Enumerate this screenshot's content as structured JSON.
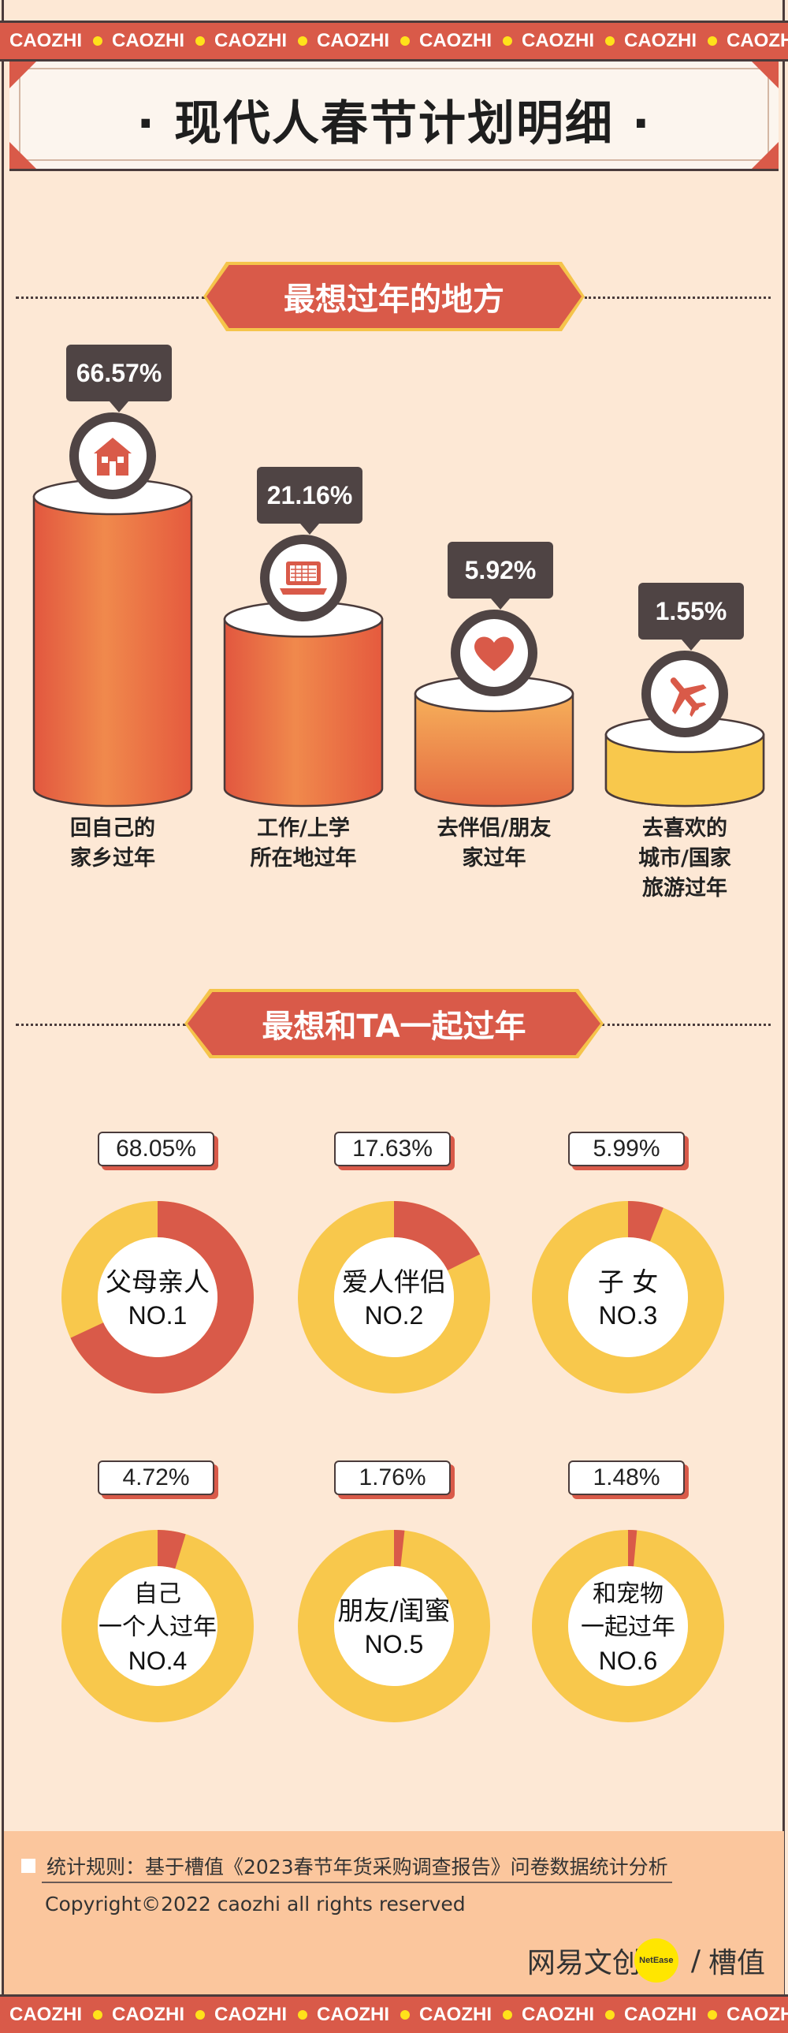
{
  "ticker": {
    "word": "CAOZHI",
    "repeat": 8
  },
  "title": "·  现代人春节计划明细  ·",
  "section1": {
    "title": "最想过年的地方",
    "items": [
      {
        "pct": "66.57%",
        "value": 66.57,
        "icon": "house-icon",
        "label_lines": [
          "回自己的",
          "家乡过年"
        ]
      },
      {
        "pct": "21.16%",
        "value": 21.16,
        "icon": "laptop-icon",
        "label_lines": [
          "工作/上学",
          "所在地过年"
        ]
      },
      {
        "pct": "5.92%",
        "value": 5.92,
        "icon": "heart-icon",
        "label_lines": [
          "去伴侣/朋友",
          "家过年"
        ]
      },
      {
        "pct": "1.55%",
        "value": 1.55,
        "icon": "airplane-icon",
        "label_lines": [
          "去喜欢的",
          "城市/国家",
          "旅游过年"
        ]
      }
    ]
  },
  "section2": {
    "title": "最想和TA一起过年",
    "items": [
      {
        "pct": "68.05%",
        "value": 68.05,
        "label_lines": [
          "父母亲人"
        ],
        "rank": "NO.1"
      },
      {
        "pct": "17.63%",
        "value": 17.63,
        "label_lines": [
          "爱人伴侣"
        ],
        "rank": "NO.2"
      },
      {
        "pct": "5.99%",
        "value": 5.99,
        "label_lines": [
          "子 女"
        ],
        "rank": "NO.3"
      },
      {
        "pct": "4.72%",
        "value": 4.72,
        "label_lines": [
          "自己",
          "一个人过年"
        ],
        "rank": "NO.4"
      },
      {
        "pct": "1.76%",
        "value": 1.76,
        "label_lines": [
          "朋友/闺蜜"
        ],
        "rank": "NO.5"
      },
      {
        "pct": "1.48%",
        "value": 1.48,
        "label_lines": [
          "和宠物",
          "一起过年"
        ],
        "rank": "NO.6"
      }
    ]
  },
  "chart_data": [
    {
      "type": "bar",
      "title": "最想过年的地方",
      "categories": [
        "回自己的家乡过年",
        "工作/上学所在地过年",
        "去伴侣/朋友家过年",
        "去喜欢的城市/国家旅游过年"
      ],
      "values": [
        66.57,
        21.16,
        5.92,
        1.55
      ],
      "unit": "%"
    },
    {
      "type": "pie",
      "title": "最想和TA一起过年",
      "categories": [
        "父母亲人",
        "爱人伴侣",
        "子 女",
        "自己一个人过年",
        "朋友/闺蜜",
        "和宠物一起过年"
      ],
      "values": [
        68.05,
        17.63,
        5.99,
        4.72,
        1.76,
        1.48
      ],
      "unit": "%"
    }
  ],
  "colors": {
    "accent": "#d95a49",
    "yellow": "#f8c84c",
    "dark": "#4f4444",
    "bg": "#fde8d5"
  },
  "footer": {
    "note": "统计规则：基于槽值《2023春节年货采购调查报告》问卷数据统计分析",
    "copyright": "Copyright©2022 caozhi all rights reserved",
    "brand_left": "网易文创",
    "brand_badge": "NetEase",
    "brand_sep": "/",
    "brand_right": "槽值"
  }
}
